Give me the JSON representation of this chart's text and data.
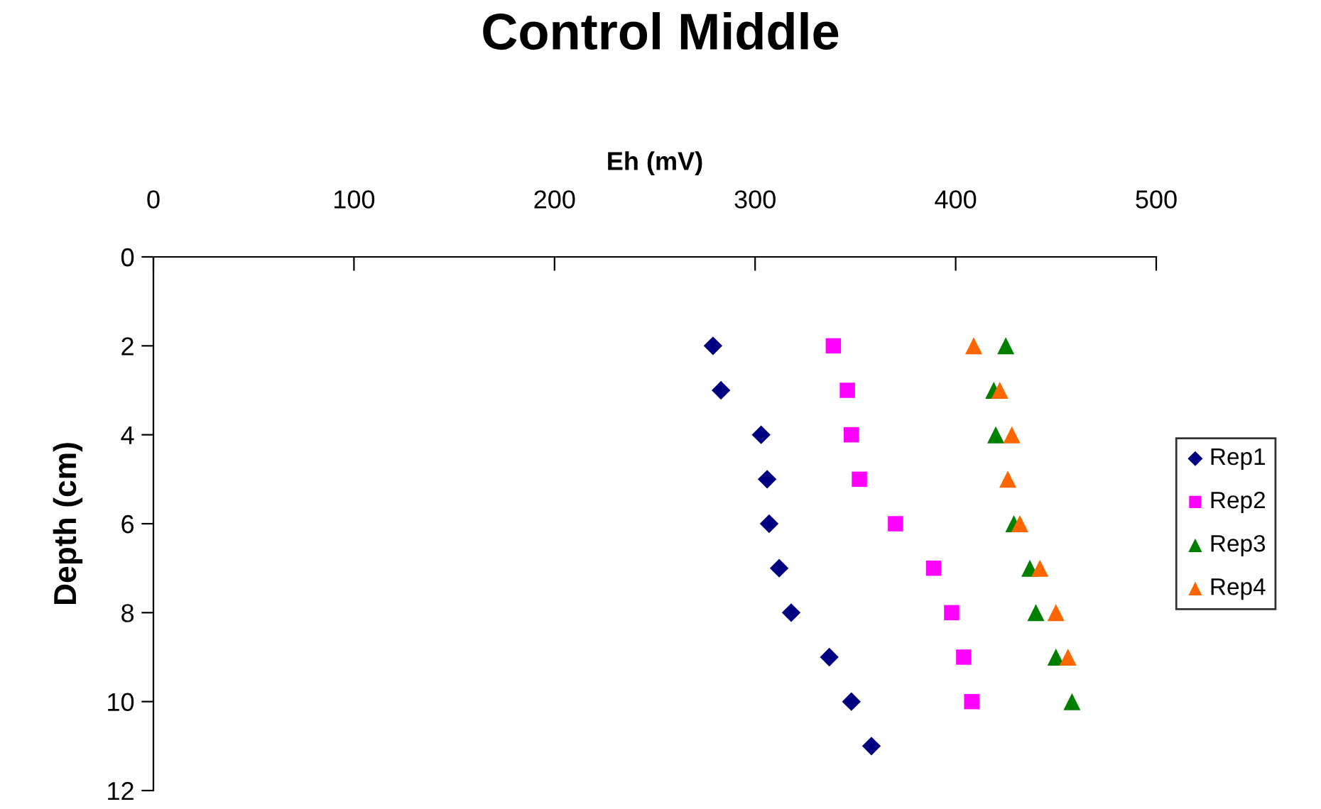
{
  "chart_data": {
    "type": "scatter",
    "title": "Control Middle",
    "xlabel": "Eh (mV)",
    "ylabel": "Depth (cm)",
    "xlim": [
      0,
      500
    ],
    "xticks": [
      0,
      100,
      200,
      300,
      400,
      500
    ],
    "ylim": [
      12,
      0
    ],
    "yticks": [
      0,
      2,
      4,
      6,
      8,
      10,
      12
    ],
    "grid": false,
    "legend": "right",
    "series": [
      {
        "name": "Rep1",
        "color": "#000080",
        "marker": "diamond",
        "x": [
          279,
          283,
          303,
          306,
          307,
          312,
          318,
          337,
          348,
          358
        ],
        "values": [
          2,
          3,
          4,
          5,
          6,
          7,
          8,
          9,
          10,
          11
        ]
      },
      {
        "name": "Rep2",
        "color": "#ff00ff",
        "marker": "square",
        "x": [
          339,
          346,
          348,
          352,
          370,
          389,
          398,
          404,
          408
        ],
        "values": [
          2,
          3,
          4,
          5,
          6,
          7,
          8,
          9,
          10
        ]
      },
      {
        "name": "Rep3",
        "color": "#008000",
        "marker": "triangle",
        "x": [
          425,
          419,
          420,
          429,
          437,
          440,
          450,
          458
        ],
        "values": [
          2,
          3,
          4,
          6,
          7,
          8,
          9,
          10
        ]
      },
      {
        "name": "Rep4",
        "color": "#ff6600",
        "marker": "triangle",
        "x": [
          409,
          422,
          428,
          426,
          432,
          442,
          450,
          456
        ],
        "values": [
          2,
          3,
          4,
          5,
          6,
          7,
          8,
          9
        ]
      }
    ]
  }
}
